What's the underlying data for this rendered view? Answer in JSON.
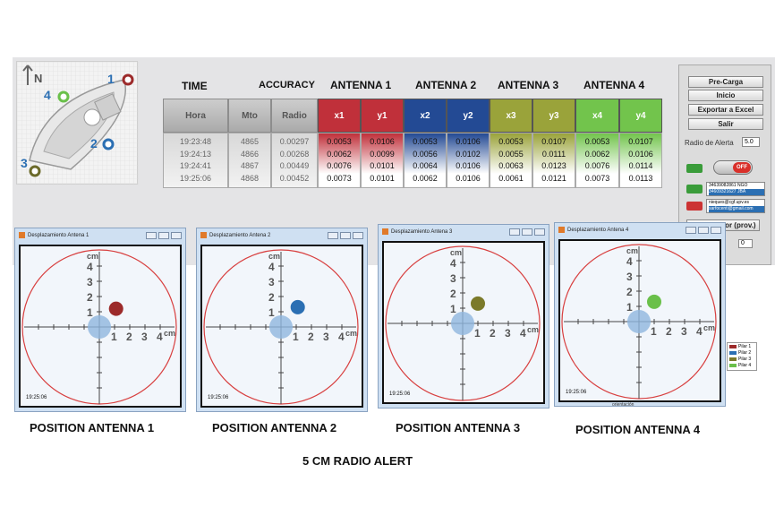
{
  "colors": {
    "a1": "#9c2a2a",
    "a1h": "#c0303a",
    "a2": "#2b6fb3",
    "a2h": "#234a94",
    "a3": "#7b7a2a",
    "a3h": "#9aa33a",
    "a4": "#6ac04a",
    "a4h": "#72c44c"
  },
  "headers": {
    "time": "TIME",
    "accuracy": "ACCURACY",
    "antenna1": "ANTENNA 1",
    "antenna2": "ANTENNA 2",
    "antenna3": "ANTENNA 3",
    "antenna4": "ANTENNA 4"
  },
  "boat": {
    "north": "N",
    "p1": "1",
    "p2": "2",
    "p3": "3",
    "p4": "4"
  },
  "table": {
    "columns": [
      "Hora",
      "Mto",
      "Radio",
      "x1",
      "y1",
      "x2",
      "y2",
      "x3",
      "y3",
      "x4",
      "y4"
    ],
    "rows": [
      [
        "19:23:48",
        "4865",
        "0.00297",
        "0.0053",
        "0.0106",
        "0.0053",
        "0.0106",
        "0.0053",
        "0.0107",
        "0.0053",
        "0.0107"
      ],
      [
        "19:24:13",
        "4866",
        "0.00268",
        "0.0062",
        "0.0099",
        "0.0056",
        "0.0102",
        "0.0055",
        "0.0111",
        "0.0062",
        "0.0106"
      ],
      [
        "19:24:41",
        "4867",
        "0.00449",
        "0.0076",
        "0.0101",
        "0.0064",
        "0.0106",
        "0.0063",
        "0.0123",
        "0.0076",
        "0.0114"
      ],
      [
        "19:25:06",
        "4868",
        "0.00452",
        "0.0073",
        "0.0101",
        "0.0062",
        "0.0106",
        "0.0061",
        "0.0121",
        "0.0073",
        "0.0113"
      ]
    ]
  },
  "controls": {
    "precarga": "Pre-Carga",
    "inicio": "Inicio",
    "exportar": "Exportar a Excel",
    "salir": "Salir",
    "radio_alerta_label": "Radio de Alerta",
    "radio_alerta_value": "5.0",
    "toggle": "OFF",
    "phone1": "34639082861 NGO",
    "phone2": "34609321627 JBA",
    "mail1": "nieques@cgf.upv.es",
    "mail2": "sarfocenti@gmail.com",
    "monitor": "Monitorador (prov.)",
    "small_value": "0"
  },
  "windows": [
    {
      "title": "Desplazamiento Antena 1",
      "time": "19:25:06",
      "caption": "POSITION  ANTENNA 1",
      "dot": [
        1.1,
        1.2
      ],
      "color": "#9c2a2a"
    },
    {
      "title": "Desplazamiento Antena 2",
      "time": "19:25:06",
      "caption": "POSITION  ANTENNA 2",
      "dot": [
        1.1,
        1.3
      ],
      "color": "#2b6fb3"
    },
    {
      "title": "Desplazamiento Antena 3",
      "time": "19:25:06",
      "caption": "POSITION  ANTENNA 3",
      "dot": [
        1.0,
        1.3
      ],
      "color": "#7b7a2a"
    },
    {
      "title": "Desplazamiento Antena 4",
      "time": "19:25:06",
      "caption": "POSITION  ANTENNA 4",
      "dot": [
        1.0,
        1.3
      ],
      "color": "#6ac04a"
    }
  ],
  "axis": {
    "unit": "cm",
    "ticks": [
      "1",
      "2",
      "3",
      "4"
    ]
  },
  "legend": [
    "Pilar 1",
    "Pilar 2",
    "Pilar 3",
    "Pilar 4"
  ],
  "orientation": "orientación",
  "footer": "5 CM RADIO ALERT"
}
